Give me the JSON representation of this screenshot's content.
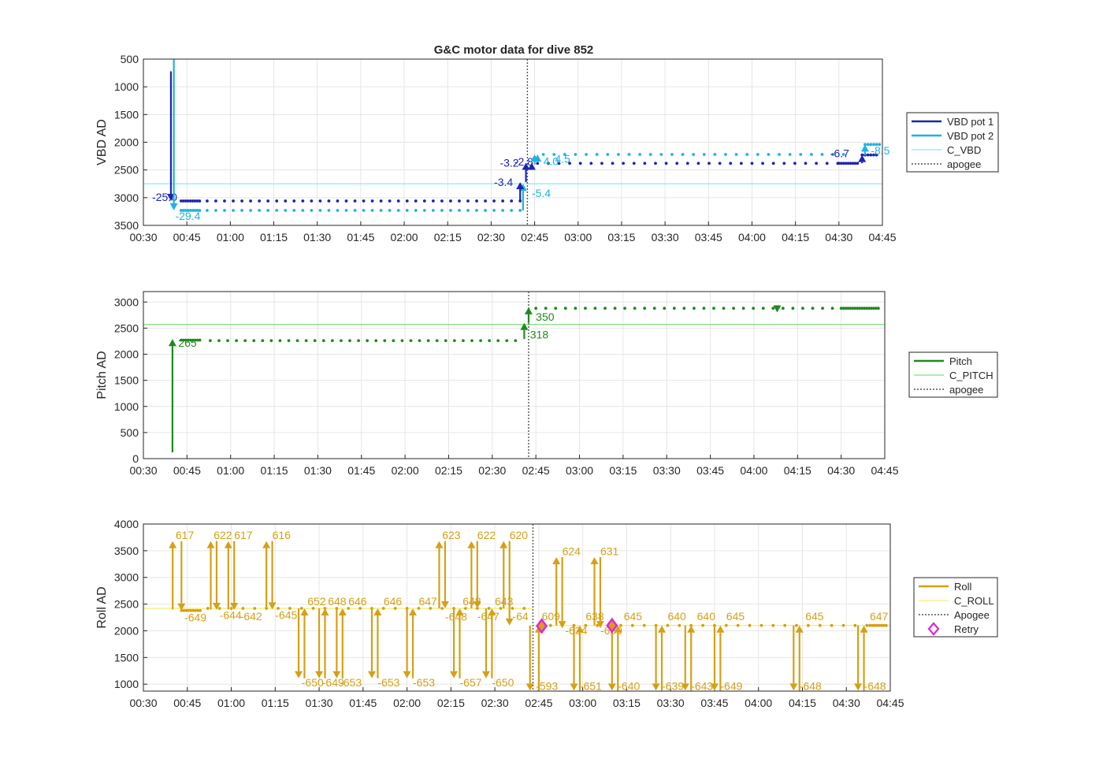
{
  "title": "G&C motor data for dive 852",
  "chart_data": [
    {
      "type": "line",
      "id": "vbd",
      "ylabel": "VBD AD",
      "yreverse": true,
      "ylim": [
        500,
        3500
      ],
      "yticks": [
        500,
        1000,
        1500,
        2000,
        2500,
        3000,
        3500
      ],
      "xlim": [
        30,
        285
      ],
      "xticks": [
        "00:30",
        "00:45",
        "01:00",
        "01:15",
        "01:30",
        "01:45",
        "02:00",
        "02:15",
        "02:30",
        "02:45",
        "03:00",
        "03:15",
        "03:30",
        "03:45",
        "04:00",
        "04:15",
        "04:30",
        "04:45"
      ],
      "grid": true,
      "legend_position": "right",
      "legend": [
        "VBD pot 1",
        "VBD pot 2",
        "C_VBD",
        "apogee"
      ],
      "colors": {
        "pot1": "#1f24b0",
        "pot2": "#1fb3e0",
        "cline": "#8ee8f2",
        "apogee": "#555555"
      },
      "c_value": 2750,
      "apogee": 162.5,
      "dots": [
        {
          "series": "pot1",
          "x0": 43,
          "x1": 50,
          "step": 0.8,
          "y": 3060
        },
        {
          "series": "pot1",
          "x0": 52,
          "x1": 160,
          "step": 3,
          "y": 3060
        },
        {
          "series": "pot1",
          "x0": 166,
          "x1": 270,
          "step": 3.7,
          "y": 2380
        },
        {
          "series": "pot1",
          "x0": 270,
          "x1": 277,
          "step": 0.8,
          "y": 2380
        },
        {
          "series": "pot1",
          "x0": 278,
          "x1": 283,
          "step": 1,
          "y": 2230
        },
        {
          "series": "pot2",
          "x0": 43,
          "x1": 50,
          "step": 0.8,
          "y": 3230
        },
        {
          "series": "pot2",
          "x0": 52,
          "x1": 160,
          "step": 3,
          "y": 3230
        },
        {
          "series": "pot2",
          "x0": 168,
          "x1": 275,
          "step": 3.7,
          "y": 2220
        },
        {
          "series": "pot2",
          "x0": 279,
          "x1": 284,
          "step": 1,
          "y": 2040
        }
      ],
      "arrows": [
        {
          "series": "pot1",
          "x": 39.5,
          "from": 720,
          "to": 3060,
          "label": "-25.0",
          "lx": 33,
          "ly": 3060
        },
        {
          "series": "pot2",
          "x": 40.5,
          "from": 500,
          "to": 3230,
          "label": "-29.4",
          "lx": 41,
          "ly": 3400
        },
        {
          "series": "pot2",
          "x": 161,
          "from": 3230,
          "to": 2750,
          "label": "-5.4",
          "lx": 164,
          "ly": 2990
        },
        {
          "series": "pot1",
          "x": 160,
          "from": 3060,
          "to": 2720,
          "label": "-3.4",
          "lx": 151,
          "ly": 2790
        },
        {
          "series": "pot1",
          "x": 162,
          "from": 2720,
          "to": 2370,
          "label": "-3.2",
          "lx": 153,
          "ly": 2440
        },
        {
          "series": "pot1",
          "x": 164,
          "from": 2460,
          "to": 2370,
          "label": "-2.8",
          "lx": 158,
          "ly": 2420
        },
        {
          "series": "pot2",
          "x": 165,
          "from": 2400,
          "to": 2220,
          "label": "4.0",
          "lx": 168,
          "ly": 2410
        },
        {
          "series": "pot2",
          "x": 166,
          "from": 2330,
          "to": 2220,
          "label": "4.5",
          "lx": 172,
          "ly": 2370
        },
        {
          "series": "pot1",
          "x": 278,
          "from": 2380,
          "to": 2230,
          "label": "-6.7",
          "lx": 267,
          "ly": 2270
        },
        {
          "series": "pot2",
          "x": 279,
          "from": 2230,
          "to": 2040,
          "label": "-8.5",
          "lx": 281,
          "ly": 2220
        }
      ]
    },
    {
      "type": "line",
      "id": "pitch",
      "ylabel": "Pitch AD",
      "yreverse": false,
      "ylim": [
        0,
        3200
      ],
      "yticks": [
        0,
        500,
        1000,
        1500,
        2000,
        2500,
        3000
      ],
      "xlim": [
        30,
        285
      ],
      "xticks": [
        "00:30",
        "00:45",
        "01:00",
        "01:15",
        "01:30",
        "01:45",
        "02:00",
        "02:15",
        "02:30",
        "02:45",
        "03:00",
        "03:15",
        "03:30",
        "03:45",
        "04:00",
        "04:15",
        "04:30",
        "04:45"
      ],
      "grid": true,
      "legend_position": "right",
      "legend": [
        "Pitch",
        "C_PITCH",
        "apogee"
      ],
      "colors": {
        "pitch": "#1f8a1f",
        "cline": "#7ee07e",
        "apogee": "#555555"
      },
      "c_value": 2570,
      "apogee": 162.5,
      "dots": [
        {
          "series": "pitch",
          "x0": 43,
          "x1": 50,
          "step": 0.8,
          "y": 2270
        },
        {
          "series": "pitch",
          "x0": 53,
          "x1": 160,
          "step": 3,
          "y": 2260
        },
        {
          "series": "pitch",
          "x0": 165,
          "x1": 270,
          "step": 3.4,
          "y": 2880
        },
        {
          "series": "pitch",
          "x0": 270,
          "x1": 283,
          "step": 0.8,
          "y": 2880
        }
      ],
      "arrows": [
        {
          "series": "pitch",
          "x": 40,
          "from": 120,
          "to": 2290,
          "label": "265",
          "lx": 42,
          "ly": 2140
        },
        {
          "series": "pitch",
          "x": 161,
          "from": 2290,
          "to": 2600,
          "label": "318",
          "lx": 163,
          "ly": 2300
        },
        {
          "series": "pitch",
          "x": 162.5,
          "from": 2600,
          "to": 2900,
          "label": "350",
          "lx": 165,
          "ly": 2640
        },
        {
          "series": "pitch",
          "x": 248,
          "from": 2900,
          "to": 2800,
          "label": "",
          "lx": 0,
          "ly": 0
        }
      ]
    },
    {
      "type": "line",
      "id": "roll",
      "ylabel": "Roll AD",
      "yreverse": false,
      "ylim": [
        870,
        4000
      ],
      "yticks": [
        1000,
        1500,
        2000,
        2500,
        3000,
        3500,
        4000
      ],
      "xlim": [
        30,
        285
      ],
      "xticks": [
        "00:30",
        "00:45",
        "01:00",
        "01:15",
        "01:30",
        "01:45",
        "02:00",
        "02:15",
        "02:30",
        "02:45",
        "03:00",
        "03:15",
        "03:30",
        "03:45",
        "04:00",
        "04:15",
        "04:30",
        "04:45"
      ],
      "grid": true,
      "legend_position": "right",
      "legend": [
        "Roll",
        "C_ROLL",
        "Apogee",
        "Retry"
      ],
      "colors": {
        "roll": "#d4a017",
        "cline": "#f5ef7a",
        "apogee": "#555555",
        "retry": "#e026d6"
      },
      "c_value_first": 2420,
      "c_value_second": 2100,
      "c_switch": 163,
      "apogee": 163,
      "dots": [
        {
          "series": "roll",
          "x0": 43,
          "x1": 50,
          "step": 0.8,
          "y": 2380
        },
        {
          "series": "roll",
          "x0": 52,
          "x1": 162,
          "step": 4,
          "y": 2420
        },
        {
          "series": "roll",
          "x0": 165,
          "x1": 278,
          "step": 4,
          "y": 2100
        },
        {
          "series": "roll",
          "x0": 278,
          "x1": 284,
          "step": 0.8,
          "y": 2100
        }
      ],
      "arrows": [
        {
          "x": 40,
          "from": 2400,
          "to": 3680,
          "label": "617",
          "lx": 41,
          "ly": 3720
        },
        {
          "x": 43,
          "from": 3680,
          "to": 2380,
          "label": "-649",
          "lx": 44,
          "ly": 2180
        },
        {
          "x": 53,
          "from": 2400,
          "to": 3680,
          "label": "622",
          "lx": 54,
          "ly": 3720
        },
        {
          "x": 55,
          "from": 3680,
          "to": 2390,
          "label": "-644",
          "lx": 56,
          "ly": 2220
        },
        {
          "x": 59,
          "from": 2400,
          "to": 3680,
          "label": "617",
          "lx": 61,
          "ly": 3720
        },
        {
          "x": 61,
          "from": 3680,
          "to": 2390,
          "label": "-642",
          "lx": 63,
          "ly": 2200
        },
        {
          "x": 72,
          "from": 2400,
          "to": 3680,
          "label": "616",
          "lx": 74,
          "ly": 3720
        },
        {
          "x": 74,
          "from": 3680,
          "to": 2400,
          "label": "-645",
          "lx": 75,
          "ly": 2220
        },
        {
          "x": 83,
          "from": 2420,
          "to": 1110,
          "label": "-650",
          "lx": 84,
          "ly": 960
        },
        {
          "x": 85,
          "from": 1110,
          "to": 2420,
          "label": "652",
          "lx": 86,
          "ly": 2480
        },
        {
          "x": 90,
          "from": 2420,
          "to": 1110,
          "label": "-649",
          "lx": 91,
          "ly": 960
        },
        {
          "x": 92,
          "from": 1110,
          "to": 2420,
          "label": "648",
          "lx": 93,
          "ly": 2480
        },
        {
          "x": 96,
          "from": 2420,
          "to": 1110,
          "label": "-653",
          "lx": 97,
          "ly": 960
        },
        {
          "x": 98,
          "from": 1110,
          "to": 2420,
          "label": "646",
          "lx": 100,
          "ly": 2480
        },
        {
          "x": 108,
          "from": 2420,
          "to": 1110,
          "label": "-653",
          "lx": 110,
          "ly": 960
        },
        {
          "x": 110,
          "from": 1110,
          "to": 2420,
          "label": "646",
          "lx": 112,
          "ly": 2480
        },
        {
          "x": 120,
          "from": 2420,
          "to": 1110,
          "label": "-653",
          "lx": 122,
          "ly": 960
        },
        {
          "x": 122,
          "from": 1110,
          "to": 2420,
          "label": "647",
          "lx": 124,
          "ly": 2480
        },
        {
          "x": 131,
          "from": 2420,
          "to": 3680,
          "label": "623",
          "lx": 132,
          "ly": 3720
        },
        {
          "x": 133,
          "from": 3680,
          "to": 2420,
          "label": "-648",
          "lx": 133,
          "ly": 2190
        },
        {
          "x": 136,
          "from": 2420,
          "to": 1110,
          "label": "-657",
          "lx": 138,
          "ly": 960
        },
        {
          "x": 138,
          "from": 1110,
          "to": 2420,
          "label": "648",
          "lx": 139,
          "ly": 2480
        },
        {
          "x": 142,
          "from": 2420,
          "to": 3680,
          "label": "622",
          "lx": 144,
          "ly": 3720
        },
        {
          "x": 144,
          "from": 3680,
          "to": 2420,
          "label": "-647",
          "lx": 144,
          "ly": 2200
        },
        {
          "x": 147,
          "from": 2420,
          "to": 1110,
          "label": "-650",
          "lx": 149,
          "ly": 960
        },
        {
          "x": 149,
          "from": 1110,
          "to": 2420,
          "label": "643",
          "lx": 150,
          "ly": 2480
        },
        {
          "x": 153,
          "from": 2420,
          "to": 3680,
          "label": "620",
          "lx": 155,
          "ly": 3720
        },
        {
          "x": 155,
          "from": 3680,
          "to": 2100,
          "label": "-64",
          "lx": 156,
          "ly": 2200
        },
        {
          "x": 162,
          "from": 2100,
          "to": 880,
          "label": "-593",
          "lx": 164,
          "ly": 890
        },
        {
          "x": 165,
          "from": 880,
          "to": 2100,
          "label": "609",
          "lx": 166,
          "ly": 2200
        },
        {
          "x": 171,
          "from": 2100,
          "to": 3380,
          "label": "624",
          "lx": 173,
          "ly": 3420
        },
        {
          "x": 173,
          "from": 3380,
          "to": 2050,
          "label": "-634",
          "lx": 174,
          "ly": 1930
        },
        {
          "x": 177,
          "from": 2100,
          "to": 880,
          "label": "-651",
          "lx": 179,
          "ly": 890
        },
        {
          "x": 179,
          "from": 880,
          "to": 2100,
          "label": "638",
          "lx": 181,
          "ly": 2200
        },
        {
          "x": 184,
          "from": 2100,
          "to": 3380,
          "label": "631",
          "lx": 186,
          "ly": 3420
        },
        {
          "x": 186,
          "from": 3380,
          "to": 2050,
          "label": "-639",
          "lx": 186,
          "ly": 1930
        },
        {
          "x": 190,
          "from": 2100,
          "to": 880,
          "label": "-640",
          "lx": 192,
          "ly": 890
        },
        {
          "x": 192,
          "from": 880,
          "to": 2100,
          "label": "645",
          "lx": 194,
          "ly": 2200
        },
        {
          "x": 205,
          "from": 2100,
          "to": 880,
          "label": "-639",
          "lx": 207,
          "ly": 890
        },
        {
          "x": 207,
          "from": 880,
          "to": 2100,
          "label": "640",
          "lx": 209,
          "ly": 2200
        },
        {
          "x": 215,
          "from": 2100,
          "to": 880,
          "label": "-643",
          "lx": 217,
          "ly": 890
        },
        {
          "x": 217,
          "from": 880,
          "to": 2100,
          "label": "640",
          "lx": 219,
          "ly": 2200
        },
        {
          "x": 225,
          "from": 2100,
          "to": 880,
          "label": "-649",
          "lx": 227,
          "ly": 890
        },
        {
          "x": 227,
          "from": 880,
          "to": 2100,
          "label": "645",
          "lx": 229,
          "ly": 2200
        },
        {
          "x": 252,
          "from": 2100,
          "to": 880,
          "label": "-648",
          "lx": 254,
          "ly": 890
        },
        {
          "x": 254,
          "from": 880,
          "to": 2100,
          "label": "645",
          "lx": 256,
          "ly": 2200
        },
        {
          "x": 274,
          "from": 2100,
          "to": 880,
          "label": "-648",
          "lx": 276,
          "ly": 890
        },
        {
          "x": 276,
          "from": 880,
          "to": 2100,
          "label": "647",
          "lx": 278,
          "ly": 2200
        }
      ],
      "retries": [
        {
          "x": 166,
          "y": 2090
        },
        {
          "x": 190,
          "y": 2100
        }
      ]
    }
  ]
}
